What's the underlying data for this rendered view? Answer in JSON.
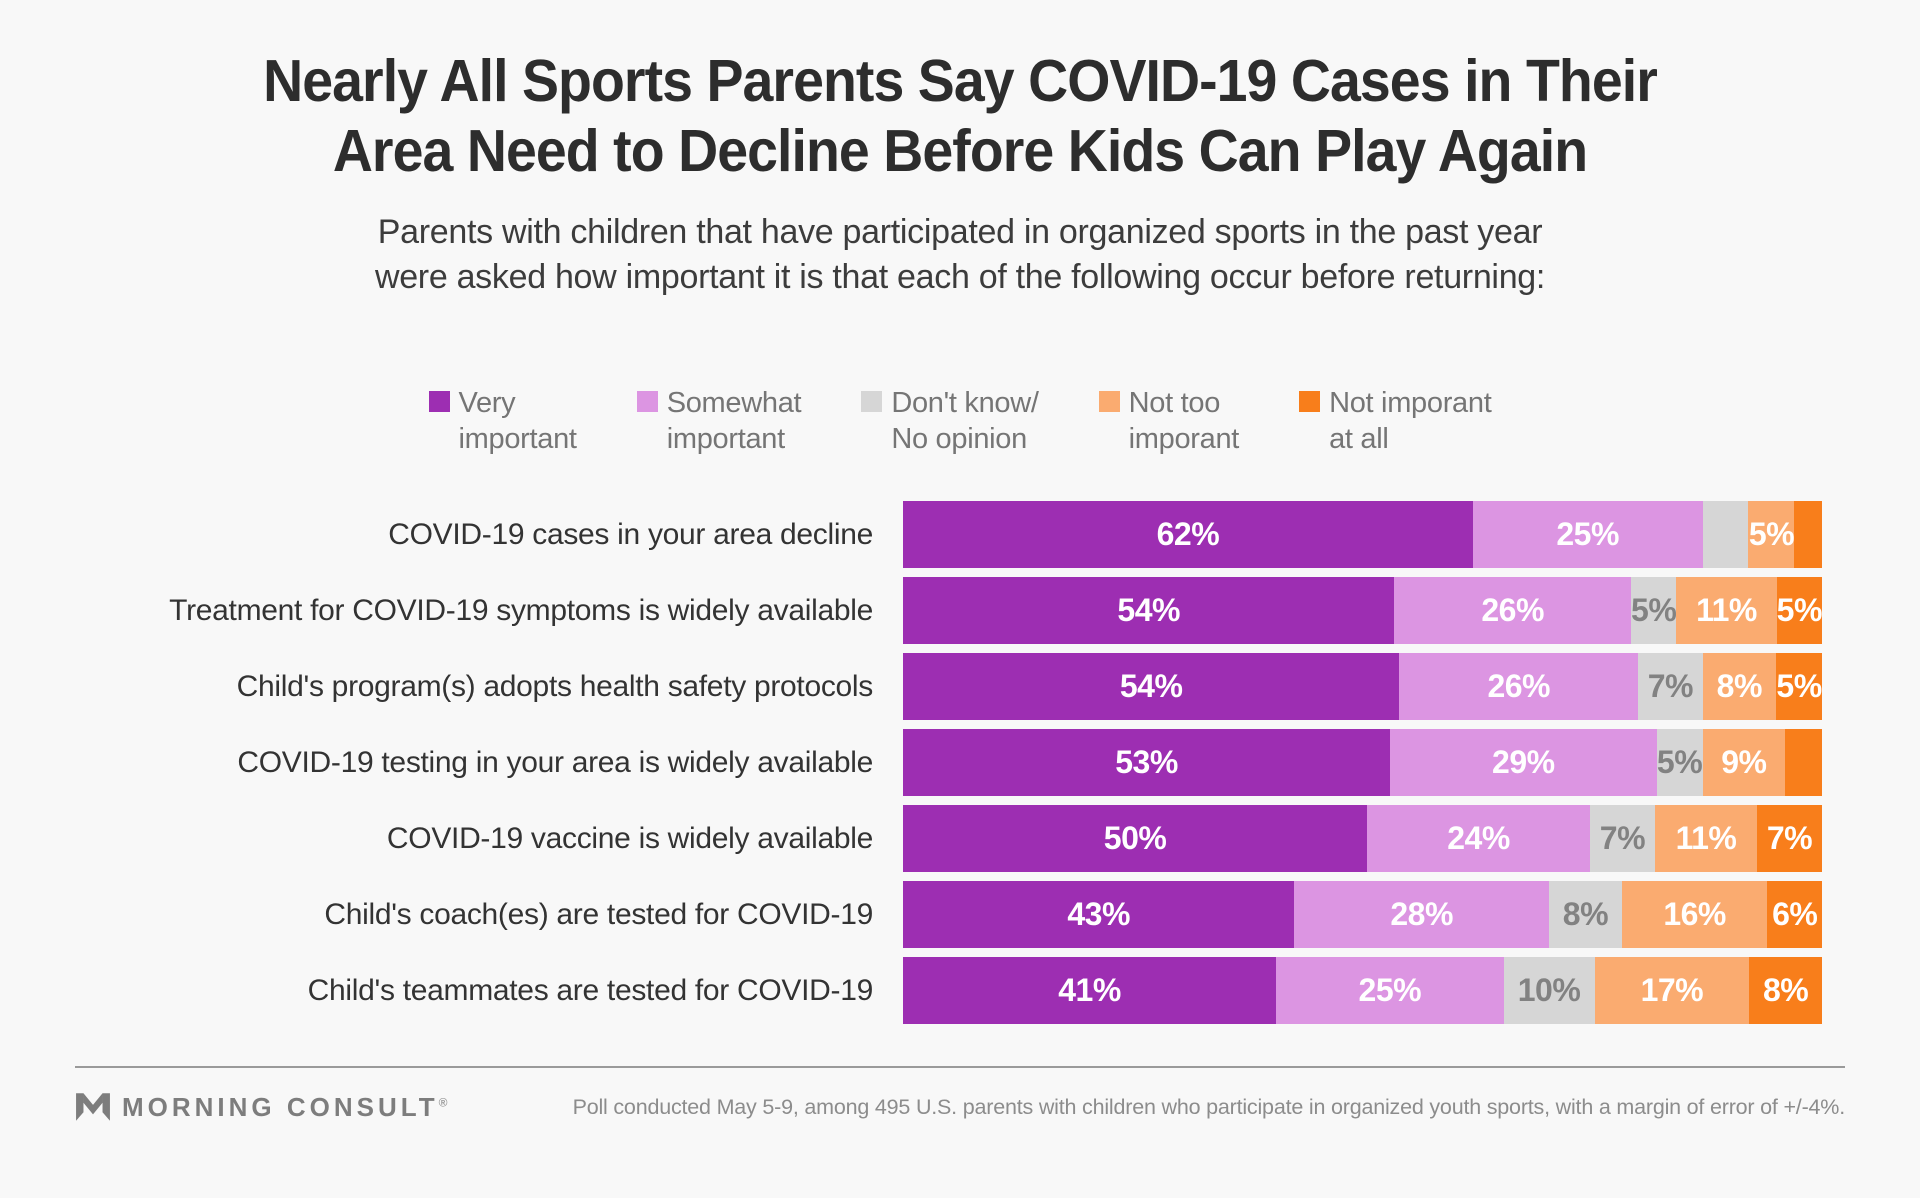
{
  "header": {
    "title_lines": [
      "Nearly All Sports Parents Say COVID-19 Cases in Their",
      "Area Need to Decline Before Kids Can Play Again"
    ],
    "subtitle_lines": [
      "Parents with children that have participated in organized sports in the past year",
      "were asked how important it is that each of the following occur before returning:"
    ]
  },
  "colors": {
    "background": "#f8f8f8",
    "very_important": "#9d2eb2",
    "somewhat_important": "#dc95e2",
    "dont_know": "#d6d6d6",
    "not_too_important": "#faab70",
    "not_important_at_all": "#f87e1b",
    "white_label": "#ffffff",
    "gray_label": "#828282"
  },
  "chart_data": {
    "type": "bar",
    "stacked": true,
    "orientation": "horizontal",
    "title": "Nearly All Sports Parents Say COVID-19 Cases in Their Area Need to Decline Before Kids Can Play Again",
    "subtitle": "Parents with children that have participated in organized sports in the past year were asked how important it is that each of the following occur before returning:",
    "xlim": [
      0,
      100
    ],
    "legend_position": "top",
    "legend": [
      {
        "label": "Very\nimportant",
        "color": "#9d2eb2"
      },
      {
        "label": "Somewhat\nimportant",
        "color": "#dc95e2"
      },
      {
        "label": "Don't know/\nNo opinion",
        "color": "#d6d6d6"
      },
      {
        "label": "Not too\nimporant",
        "color": "#faab70"
      },
      {
        "label": "Not imporant\nat all",
        "color": "#f87e1b"
      }
    ],
    "categories": [
      "COVID-19 cases in your area decline",
      "Treatment for COVID-19 symptoms is widely available",
      "Child's program(s) adopts health safety protocols",
      "COVID-19 testing in your area is widely available",
      "COVID-19 vaccine is widely available",
      "Child's coach(es) are tested for COVID-19",
      "Child's teammates are tested for COVID-19"
    ],
    "series": [
      {
        "name": "Very important",
        "color": "#9d2eb2",
        "text_color": "#ffffff",
        "values": [
          62,
          54,
          54,
          53,
          50,
          43,
          41
        ],
        "labels": [
          "62%",
          "54%",
          "54%",
          "53%",
          "50%",
          "43%",
          "41%"
        ]
      },
      {
        "name": "Somewhat important",
        "color": "#dc95e2",
        "text_color": "#ffffff",
        "values": [
          25,
          26,
          26,
          29,
          24,
          28,
          25
        ],
        "labels": [
          "25%",
          "26%",
          "26%",
          "29%",
          "24%",
          "28%",
          "25%"
        ]
      },
      {
        "name": "Don't know/ No opinion",
        "color": "#d6d6d6",
        "text_color": "#828282",
        "values": [
          5,
          5,
          7,
          5,
          7,
          8,
          10
        ],
        "labels": [
          "",
          "5%",
          "7%",
          "5%",
          "7%",
          "8%",
          "10%"
        ]
      },
      {
        "name": "Not too imporant",
        "color": "#faab70",
        "text_color": "#ffffff",
        "values": [
          5,
          11,
          8,
          9,
          11,
          16,
          17
        ],
        "labels": [
          "5%",
          "11%",
          "8%",
          "9%",
          "11%",
          "16%",
          "17%"
        ]
      },
      {
        "name": "Not imporant at all",
        "color": "#f87e1b",
        "text_color": "#ffffff",
        "values": [
          3,
          5,
          5,
          4,
          7,
          6,
          8
        ],
        "labels": [
          "",
          "5%",
          "5%",
          "",
          "7%",
          "6%",
          "8%"
        ]
      }
    ]
  },
  "footer": {
    "brand": "MORNING CONSULT",
    "registered": "®",
    "note": "Poll conducted May 5-9, among 495 U.S. parents with children who participate in organized youth sports, with a margin of error of +/-4%."
  }
}
